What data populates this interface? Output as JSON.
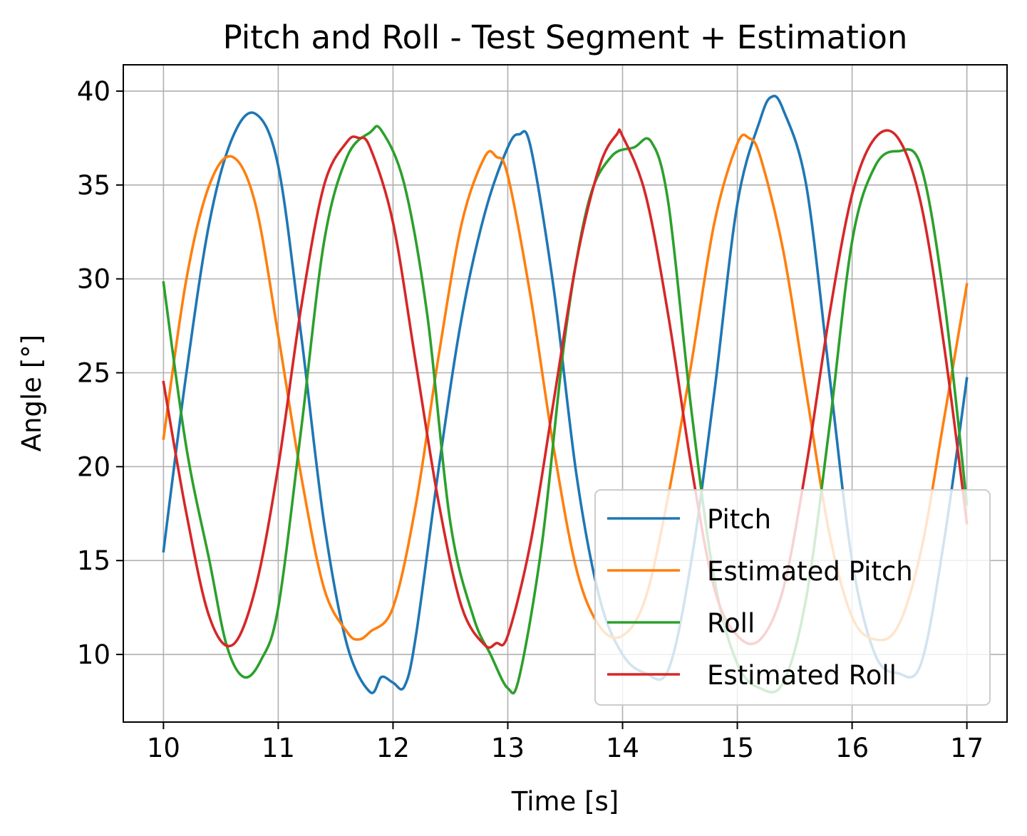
{
  "chart_data": {
    "type": "line",
    "title": "Pitch and Roll - Test Segment + Estimation",
    "xlabel": "Time [s]",
    "ylabel": "Angle [°]",
    "xlim": [
      9.65,
      17.35
    ],
    "ylim": [
      6.4,
      41.4
    ],
    "xticks": [
      10,
      11,
      12,
      13,
      14,
      15,
      16,
      17
    ],
    "yticks": [
      10,
      15,
      20,
      25,
      30,
      35,
      40
    ],
    "xtick_labels": [
      "10",
      "11",
      "12",
      "13",
      "14",
      "15",
      "16",
      "17"
    ],
    "ytick_labels": [
      "10",
      "15",
      "20",
      "25",
      "30",
      "35",
      "40"
    ],
    "grid": true,
    "legend_position": "lower right",
    "series": [
      {
        "name": "Pitch",
        "color": "#1f77b4",
        "x": [
          10.0,
          10.2,
          10.4,
          10.6,
          10.8,
          11.0,
          11.2,
          11.4,
          11.6,
          11.8,
          11.9,
          12.0,
          12.1,
          12.2,
          12.4,
          12.6,
          12.8,
          13.0,
          13.1,
          13.2,
          13.4,
          13.6,
          13.8,
          14.0,
          14.2,
          14.4,
          14.6,
          14.8,
          15.0,
          15.2,
          15.3,
          15.4,
          15.6,
          15.8,
          16.0,
          16.2,
          16.4,
          16.6,
          16.8,
          17.0
        ],
        "y": [
          15.5,
          25.0,
          33.0,
          37.5,
          38.8,
          36.0,
          27.0,
          17.0,
          10.5,
          8.0,
          8.8,
          8.5,
          8.3,
          11.0,
          20.0,
          28.0,
          33.5,
          37.0,
          37.7,
          37.0,
          29.5,
          19.5,
          13.0,
          10.0,
          9.0,
          9.2,
          15.0,
          24.0,
          34.0,
          38.5,
          39.7,
          39.0,
          35.0,
          25.0,
          15.0,
          10.0,
          9.0,
          9.5,
          16.0,
          24.7
        ]
      },
      {
        "name": "Estimated Pitch",
        "color": "#ff7f0e",
        "x": [
          10.0,
          10.2,
          10.4,
          10.6,
          10.8,
          11.0,
          11.2,
          11.4,
          11.6,
          11.7,
          11.8,
          12.0,
          12.2,
          12.4,
          12.6,
          12.8,
          12.9,
          13.0,
          13.2,
          13.4,
          13.6,
          13.8,
          14.0,
          14.2,
          14.4,
          14.6,
          14.8,
          15.0,
          15.1,
          15.2,
          15.4,
          15.6,
          15.8,
          16.0,
          16.2,
          16.4,
          16.6,
          16.8,
          17.0
        ],
        "y": [
          21.5,
          30.0,
          35.0,
          36.5,
          34.0,
          27.0,
          19.5,
          13.5,
          11.2,
          10.8,
          11.2,
          12.5,
          18.0,
          26.0,
          33.0,
          36.5,
          36.5,
          35.5,
          29.0,
          21.0,
          14.5,
          11.5,
          11.0,
          13.0,
          18.5,
          25.5,
          33.0,
          37.2,
          37.5,
          36.5,
          31.5,
          24.0,
          16.5,
          12.0,
          10.8,
          11.5,
          15.5,
          22.5,
          29.7
        ]
      },
      {
        "name": "Roll",
        "color": "#2ca02c",
        "x": [
          10.0,
          10.2,
          10.4,
          10.55,
          10.7,
          10.85,
          11.0,
          11.2,
          11.4,
          11.6,
          11.8,
          11.9,
          12.1,
          12.3,
          12.5,
          12.7,
          12.85,
          13.0,
          13.1,
          13.3,
          13.5,
          13.7,
          13.9,
          14.1,
          14.25,
          14.4,
          14.6,
          14.8,
          15.0,
          15.2,
          15.4,
          15.6,
          15.8,
          16.0,
          16.2,
          16.4,
          16.6,
          16.8,
          17.0
        ],
        "y": [
          29.8,
          21.0,
          15.0,
          10.5,
          8.8,
          9.7,
          12.5,
          22.0,
          32.0,
          36.5,
          37.8,
          37.9,
          35.0,
          28.0,
          17.0,
          12.0,
          10.0,
          8.2,
          8.8,
          16.0,
          27.0,
          34.0,
          36.5,
          37.0,
          37.3,
          34.0,
          23.0,
          14.0,
          9.5,
          8.2,
          8.5,
          13.0,
          22.0,
          32.0,
          36.0,
          36.8,
          36.0,
          29.0,
          18.0
        ]
      },
      {
        "name": "Estimated Roll",
        "color": "#d62728",
        "x": [
          10.0,
          10.2,
          10.4,
          10.6,
          10.8,
          11.0,
          11.2,
          11.4,
          11.6,
          11.7,
          11.8,
          12.0,
          12.2,
          12.4,
          12.6,
          12.8,
          12.9,
          13.0,
          13.2,
          13.4,
          13.6,
          13.8,
          13.95,
          14.0,
          14.2,
          14.4,
          14.6,
          14.8,
          15.0,
          15.2,
          15.4,
          15.6,
          15.8,
          16.0,
          16.2,
          16.4,
          16.6,
          16.8,
          17.0
        ],
        "y": [
          24.5,
          17.5,
          12.0,
          10.5,
          13.5,
          20.0,
          28.5,
          35.0,
          37.3,
          37.5,
          37.0,
          33.0,
          25.5,
          18.0,
          12.5,
          10.5,
          10.6,
          11.0,
          16.0,
          23.5,
          31.0,
          36.0,
          37.7,
          37.6,
          34.5,
          28.0,
          20.0,
          13.5,
          11.0,
          10.8,
          13.5,
          20.0,
          28.0,
          34.5,
          37.5,
          37.5,
          34.0,
          26.5,
          17.0
        ]
      }
    ]
  }
}
